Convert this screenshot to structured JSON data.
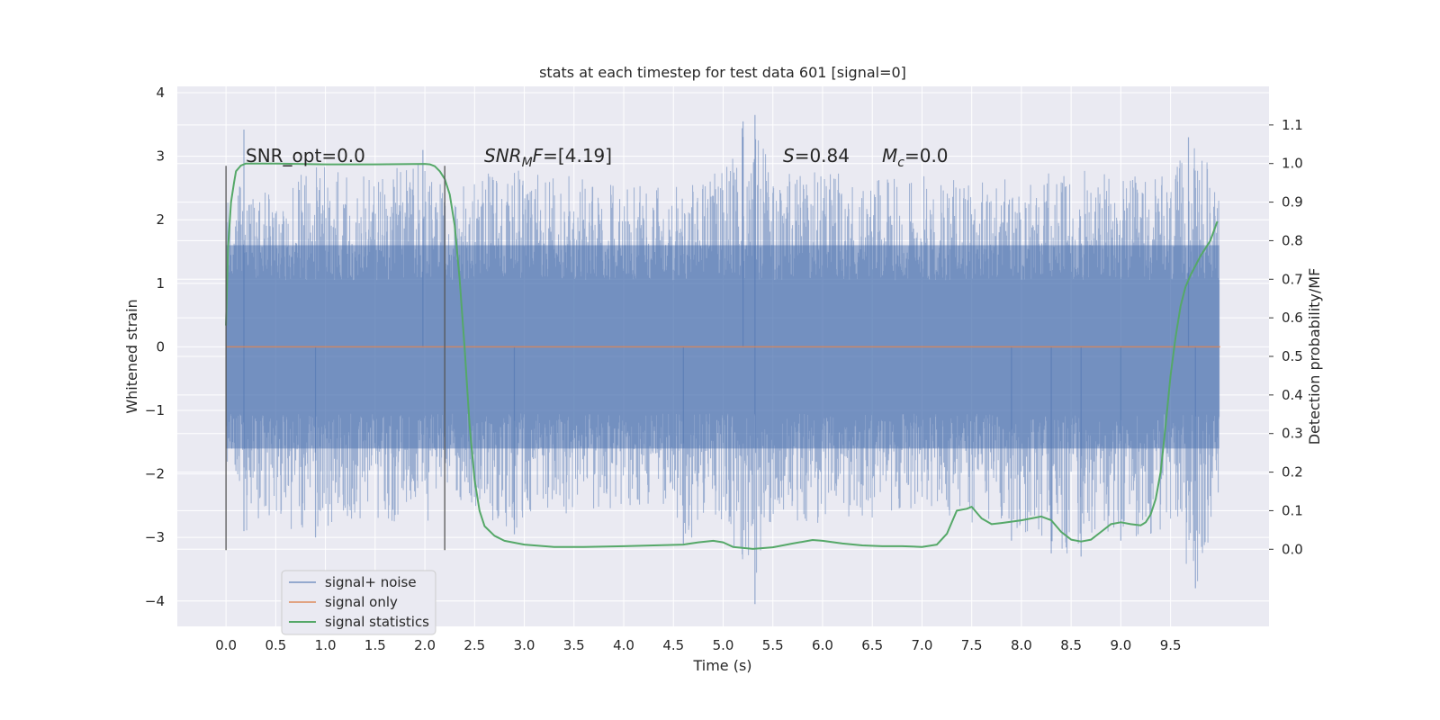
{
  "chart_data": {
    "type": "line",
    "title": "stats at each timestep for test data 601 [signal=0]",
    "xlabel": "Time (s)",
    "ylabel": "Whitened strain",
    "ylabel_right": "Detection probability/MF",
    "xlim": [
      -0.49,
      10.49
    ],
    "ylim": [
      -4.4,
      4.1
    ],
    "ylim_right": [
      -0.2,
      1.2
    ],
    "x_ticks": [
      "0.0",
      "0.5",
      "1.0",
      "1.5",
      "2.0",
      "2.5",
      "3.0",
      "3.5",
      "4.0",
      "4.5",
      "5.0",
      "5.5",
      "6.0",
      "6.5",
      "7.0",
      "7.5",
      "8.0",
      "8.5",
      "9.0",
      "9.5"
    ],
    "x_tick_values": [
      0.0,
      0.5,
      1.0,
      1.5,
      2.0,
      2.5,
      3.0,
      3.5,
      4.0,
      4.5,
      5.0,
      5.5,
      6.0,
      6.5,
      7.0,
      7.5,
      8.0,
      8.5,
      9.0,
      9.5
    ],
    "y_ticks": [
      "−4",
      "−3",
      "−2",
      "−1",
      "0",
      "1",
      "2",
      "3",
      "4"
    ],
    "y_tick_values": [
      -4,
      -3,
      -2,
      -1,
      0,
      1,
      2,
      3,
      4
    ],
    "y_ticks_right": [
      "0.0",
      "0.1",
      "0.2",
      "0.3",
      "0.4",
      "0.5",
      "0.6",
      "0.7",
      "0.8",
      "0.9",
      "1.0",
      "1.1"
    ],
    "y_tick_values_right": [
      0.0,
      0.1,
      0.2,
      0.3,
      0.4,
      0.5,
      0.6,
      0.7,
      0.8,
      0.9,
      1.0,
      1.1
    ],
    "grid": true,
    "legend_position": "lower-left",
    "annotations": {
      "snr_opt": "SNR_opt=0.0",
      "snr_mf_value": "=[4.19]",
      "s_value": "=0.84",
      "mc_value": "=0.0"
    },
    "vertical_lines": [
      {
        "x": 0.0,
        "y_range": [
          -3.2,
          2.85
        ]
      },
      {
        "x": 2.2,
        "y_range": [
          -3.2,
          2.85
        ]
      }
    ],
    "series": [
      {
        "name": "signal+ noise",
        "color": "#4c72b0",
        "style": "noise",
        "x_range": [
          0.0,
          9.99
        ],
        "envelope_pos": [
          [
            0.0,
            2.4
          ],
          [
            0.2,
            2.6
          ],
          [
            0.6,
            2.6
          ],
          [
            1.0,
            3.0
          ],
          [
            1.5,
            2.8
          ],
          [
            2.0,
            2.9
          ],
          [
            2.2,
            2.5
          ],
          [
            2.5,
            2.7
          ],
          [
            3.0,
            2.8
          ],
          [
            3.5,
            2.7
          ],
          [
            4.0,
            2.5
          ],
          [
            4.5,
            2.6
          ],
          [
            5.0,
            2.8
          ],
          [
            5.2,
            3.5
          ],
          [
            5.3,
            3.65
          ],
          [
            5.5,
            2.7
          ],
          [
            6.0,
            2.8
          ],
          [
            6.5,
            2.6
          ],
          [
            7.0,
            2.8
          ],
          [
            7.5,
            2.6
          ],
          [
            8.0,
            2.7
          ],
          [
            8.5,
            2.8
          ],
          [
            9.0,
            2.7
          ],
          [
            9.5,
            2.7
          ],
          [
            9.7,
            3.2
          ],
          [
            9.99,
            2.8
          ]
        ],
        "envelope_neg": [
          [
            0.0,
            -1.9
          ],
          [
            0.2,
            -2.9
          ],
          [
            0.9,
            -2.9
          ],
          [
            1.5,
            -2.7
          ],
          [
            2.0,
            -2.9
          ],
          [
            2.2,
            -2.2
          ],
          [
            2.5,
            -2.6
          ],
          [
            2.9,
            -2.9
          ],
          [
            3.5,
            -2.6
          ],
          [
            4.0,
            -2.6
          ],
          [
            4.5,
            -2.6
          ],
          [
            4.6,
            -3.1
          ],
          [
            5.0,
            -2.7
          ],
          [
            5.3,
            -4.05
          ],
          [
            5.5,
            -2.7
          ],
          [
            6.0,
            -2.8
          ],
          [
            6.5,
            -2.7
          ],
          [
            7.0,
            -2.6
          ],
          [
            7.5,
            -2.8
          ],
          [
            8.0,
            -3.0
          ],
          [
            8.3,
            -3.25
          ],
          [
            8.6,
            -3.3
          ],
          [
            9.0,
            -3.0
          ],
          [
            9.5,
            -3.0
          ],
          [
            9.75,
            -3.8
          ],
          [
            9.99,
            -2.6
          ]
        ],
        "highlights": [
          {
            "x": 0.18,
            "y": 3.42
          },
          {
            "x": 0.18,
            "y": -2.9
          },
          {
            "x": 0.9,
            "y": -3.0
          },
          {
            "x": 5.2,
            "y": 3.55
          },
          {
            "x": 5.32,
            "y": 3.65
          },
          {
            "x": 5.32,
            "y": -4.05
          },
          {
            "x": 4.6,
            "y": -3.1
          },
          {
            "x": 8.3,
            "y": -3.25
          },
          {
            "x": 8.6,
            "y": -3.3
          },
          {
            "x": 9.0,
            "y": -3.05
          },
          {
            "x": 9.68,
            "y": 3.3
          },
          {
            "x": 9.75,
            "y": -3.8
          },
          {
            "x": 2.9,
            "y": -2.95
          },
          {
            "x": 7.9,
            "y": -3.05
          },
          {
            "x": 1.98,
            "y": 3.1
          }
        ]
      },
      {
        "name": "signal only",
        "color": "#dd8452",
        "x": [
          0.0,
          10.0
        ],
        "y": [
          0.0,
          0.0
        ]
      },
      {
        "name": "signal statistics",
        "color": "#55a868",
        "axis": "right",
        "x": [
          0.0,
          0.02,
          0.05,
          0.08,
          0.1,
          0.15,
          0.2,
          0.3,
          0.5,
          1.0,
          1.5,
          2.0,
          2.05,
          2.1,
          2.15,
          2.2,
          2.25,
          2.3,
          2.35,
          2.4,
          2.45,
          2.5,
          2.55,
          2.6,
          2.7,
          2.8,
          3.0,
          3.3,
          3.6,
          4.0,
          4.3,
          4.6,
          4.75,
          4.9,
          5.0,
          5.1,
          5.3,
          5.5,
          5.7,
          5.9,
          6.0,
          6.2,
          6.4,
          6.6,
          6.8,
          7.0,
          7.15,
          7.25,
          7.35,
          7.45,
          7.5,
          7.55,
          7.6,
          7.7,
          7.8,
          8.0,
          8.1,
          8.2,
          8.3,
          8.4,
          8.5,
          8.6,
          8.7,
          8.8,
          8.9,
          9.0,
          9.1,
          9.2,
          9.25,
          9.3,
          9.35,
          9.4,
          9.45,
          9.5,
          9.55,
          9.6,
          9.65,
          9.7,
          9.8,
          9.9,
          9.97
        ],
        "y": [
          0.58,
          0.78,
          0.9,
          0.95,
          0.98,
          0.995,
          1.0,
          1.0,
          1.0,
          0.998,
          0.998,
          0.999,
          0.998,
          0.993,
          0.98,
          0.96,
          0.92,
          0.84,
          0.7,
          0.52,
          0.32,
          0.18,
          0.1,
          0.06,
          0.035,
          0.022,
          0.012,
          0.006,
          0.006,
          0.008,
          0.01,
          0.012,
          0.018,
          0.022,
          0.018,
          0.006,
          0.001,
          0.005,
          0.015,
          0.024,
          0.022,
          0.015,
          0.01,
          0.008,
          0.008,
          0.006,
          0.012,
          0.04,
          0.1,
          0.105,
          0.11,
          0.095,
          0.08,
          0.065,
          0.068,
          0.075,
          0.08,
          0.085,
          0.075,
          0.045,
          0.025,
          0.02,
          0.025,
          0.045,
          0.065,
          0.07,
          0.065,
          0.062,
          0.07,
          0.09,
          0.13,
          0.2,
          0.32,
          0.45,
          0.55,
          0.63,
          0.68,
          0.71,
          0.76,
          0.8,
          0.85
        ]
      }
    ]
  }
}
